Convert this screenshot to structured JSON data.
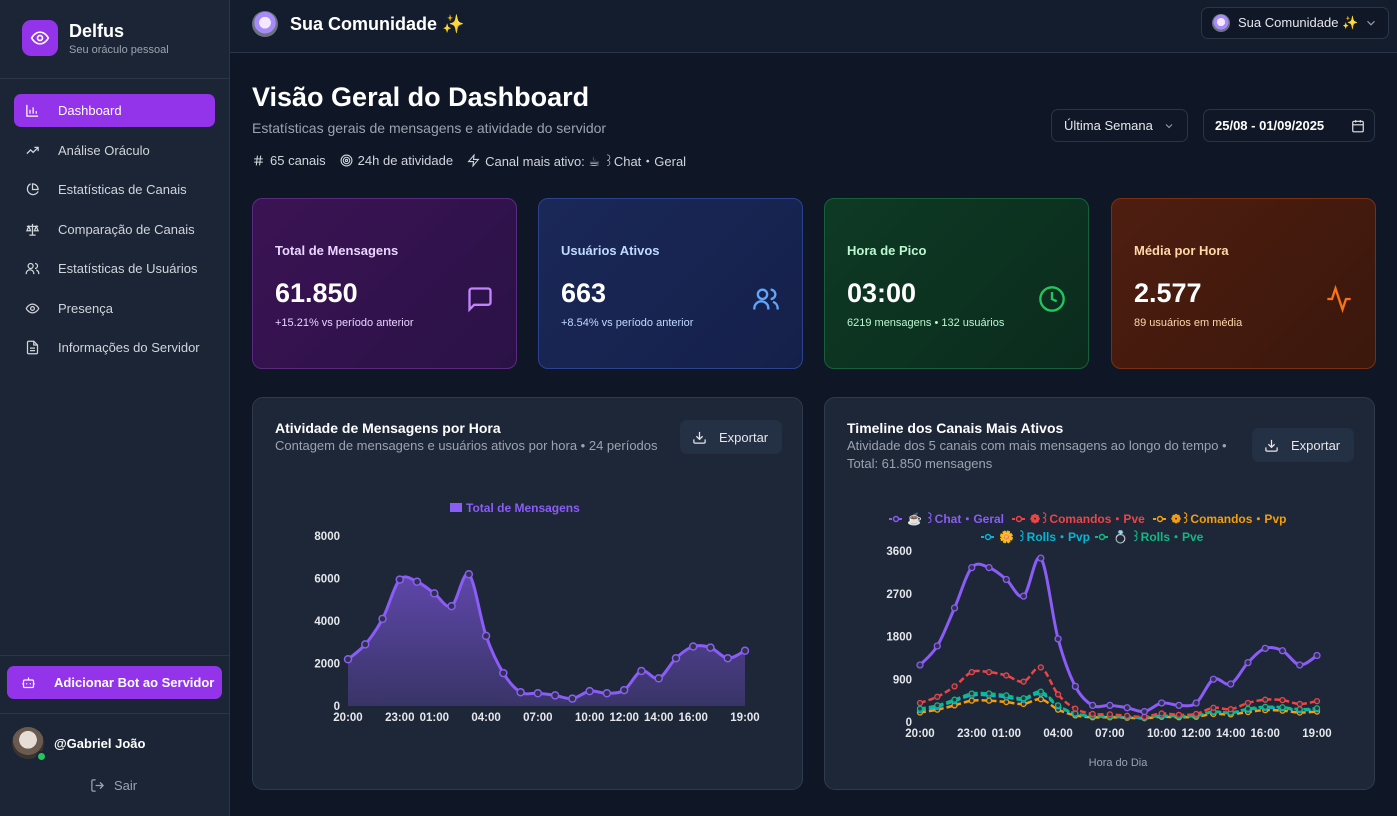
{
  "sidebar": {
    "brand_name": "Delfus",
    "brand_sub": "Seu oráculo pessoal",
    "items": [
      {
        "label": "Dashboard",
        "icon": "bar-chart-icon"
      },
      {
        "label": "Análise Oráculo",
        "icon": "trending-up-icon"
      },
      {
        "label": "Estatísticas de Canais",
        "icon": "pie-chart-icon"
      },
      {
        "label": "Comparação de Canais",
        "icon": "scale-icon"
      },
      {
        "label": "Estatísticas de Usuários",
        "icon": "users-icon"
      },
      {
        "label": "Presença",
        "icon": "eye-icon"
      },
      {
        "label": "Informações do Servidor",
        "icon": "document-icon"
      }
    ],
    "add_bot_label": "Adicionar Bot ao Servidor",
    "user_name": "@Gabriel João",
    "logout_label": "Sair"
  },
  "topbar": {
    "server_title": "Sua Comunidade ✨",
    "server_select": "Sua Comunidade ✨"
  },
  "header": {
    "title": "Visão Geral do Dashboard",
    "subtitle": "Estatísticas gerais de mensagens e atividade do servidor",
    "channels": "65 canais",
    "activity": "24h de atividade",
    "most_active": "Canal mais ativo: ☕ ꒱Chat・Geral",
    "period": "Última Semana",
    "date_range": "25/08 - 01/09/2025"
  },
  "cards": [
    {
      "title": "Total de Mensagens",
      "value": "61.850",
      "sub": "+15.21% vs período anterior"
    },
    {
      "title": "Usuários Ativos",
      "value": "663",
      "sub": "+8.54% vs período anterior"
    },
    {
      "title": "Hora de Pico",
      "value": "03:00",
      "sub": "6219 mensagens • 132 usuários"
    },
    {
      "title": "Média por Hora",
      "value": "2.577",
      "sub": "89 usuários em média"
    }
  ],
  "panels": {
    "hourly": {
      "title": "Atividade de Mensagens por Hora",
      "subtitle": "Contagem de mensagens e usuários ativos por hora • 24 períodos",
      "export": "Exportar"
    },
    "timeline": {
      "title": "Timeline dos Canais Mais Ativos",
      "subtitle_1": "Atividade dos 5 canais com mais mensagens ao longo do tempo •",
      "subtitle_2": "Total: 61.850 mensagens",
      "export": "Exportar"
    }
  },
  "chart_data": [
    {
      "type": "area",
      "title": "Atividade de Mensagens por Hora",
      "legend": [
        "Total de Mensagens"
      ],
      "x": [
        "20:00",
        "21:00",
        "22:00",
        "23:00",
        "00:00",
        "01:00",
        "02:00",
        "03:00",
        "04:00",
        "05:00",
        "06:00",
        "07:00",
        "08:00",
        "09:00",
        "10:00",
        "11:00",
        "12:00",
        "13:00",
        "14:00",
        "15:00",
        "16:00",
        "17:00",
        "18:00",
        "19:00"
      ],
      "xticks": [
        "20:00",
        "23:00",
        "01:00",
        "04:00",
        "07:00",
        "10:00",
        "12:00",
        "14:00",
        "16:00",
        "19:00"
      ],
      "yticks": [
        "0",
        "2000",
        "4000",
        "6000",
        "8000"
      ],
      "ylim": [
        0,
        8000
      ],
      "series": [
        {
          "name": "Total de Mensagens",
          "color": "#8b5cf6",
          "values": [
            2200,
            2900,
            4100,
            5950,
            5850,
            5300,
            4700,
            6200,
            3300,
            1550,
            650,
            600,
            500,
            350,
            700,
            600,
            750,
            1650,
            1300,
            2250,
            2800,
            2750,
            2250,
            2600
          ]
        }
      ]
    },
    {
      "type": "line",
      "title": "Timeline dos Canais Mais Ativos",
      "xlabel": "Hora do Dia",
      "x": [
        "20:00",
        "21:00",
        "22:00",
        "23:00",
        "00:00",
        "01:00",
        "02:00",
        "03:00",
        "04:00",
        "05:00",
        "06:00",
        "07:00",
        "08:00",
        "09:00",
        "10:00",
        "11:00",
        "12:00",
        "13:00",
        "14:00",
        "15:00",
        "16:00",
        "17:00",
        "18:00",
        "19:00"
      ],
      "xticks": [
        "20:00",
        "23:00",
        "01:00",
        "04:00",
        "07:00",
        "10:00",
        "12:00",
        "14:00",
        "16:00",
        "19:00"
      ],
      "yticks": [
        "0",
        "900",
        "1800",
        "2700",
        "3600"
      ],
      "ylim": [
        0,
        3600
      ],
      "series": [
        {
          "name": "☕ ꒱Chat・Geral",
          "color": "#8b5cf6",
          "values": [
            1200,
            1600,
            2400,
            3250,
            3250,
            3000,
            2650,
            3450,
            1750,
            750,
            350,
            350,
            300,
            220,
            400,
            350,
            400,
            900,
            800,
            1250,
            1550,
            1500,
            1200,
            1400
          ]
        },
        {
          "name": "❁꒱Comandos・Pve",
          "color": "#ef4444",
          "values": [
            400,
            530,
            750,
            1050,
            1050,
            980,
            850,
            1150,
            580,
            280,
            170,
            160,
            130,
            110,
            180,
            150,
            170,
            300,
            270,
            400,
            470,
            460,
            380,
            440
          ]
        },
        {
          "name": "❁꒱Comandos・Pvp",
          "color": "#f59e0b",
          "values": [
            200,
            260,
            350,
            450,
            450,
            420,
            380,
            480,
            260,
            140,
            100,
            100,
            90,
            80,
            110,
            100,
            110,
            170,
            160,
            210,
            250,
            240,
            200,
            220
          ]
        },
        {
          "name": "🌼 ꒱Rolls・Pvp",
          "color": "#06b6d4",
          "values": [
            250,
            320,
            440,
            560,
            560,
            520,
            470,
            600,
            330,
            170,
            120,
            110,
            100,
            90,
            130,
            120,
            130,
            210,
            190,
            260,
            300,
            290,
            250,
            270
          ]
        },
        {
          "name": "💍 ꒱Rolls・Pve",
          "color": "#10b981",
          "values": [
            280,
            350,
            470,
            600,
            600,
            560,
            500,
            640,
            350,
            180,
            130,
            120,
            110,
            100,
            140,
            130,
            140,
            220,
            200,
            280,
            320,
            310,
            270,
            290
          ]
        }
      ]
    }
  ]
}
